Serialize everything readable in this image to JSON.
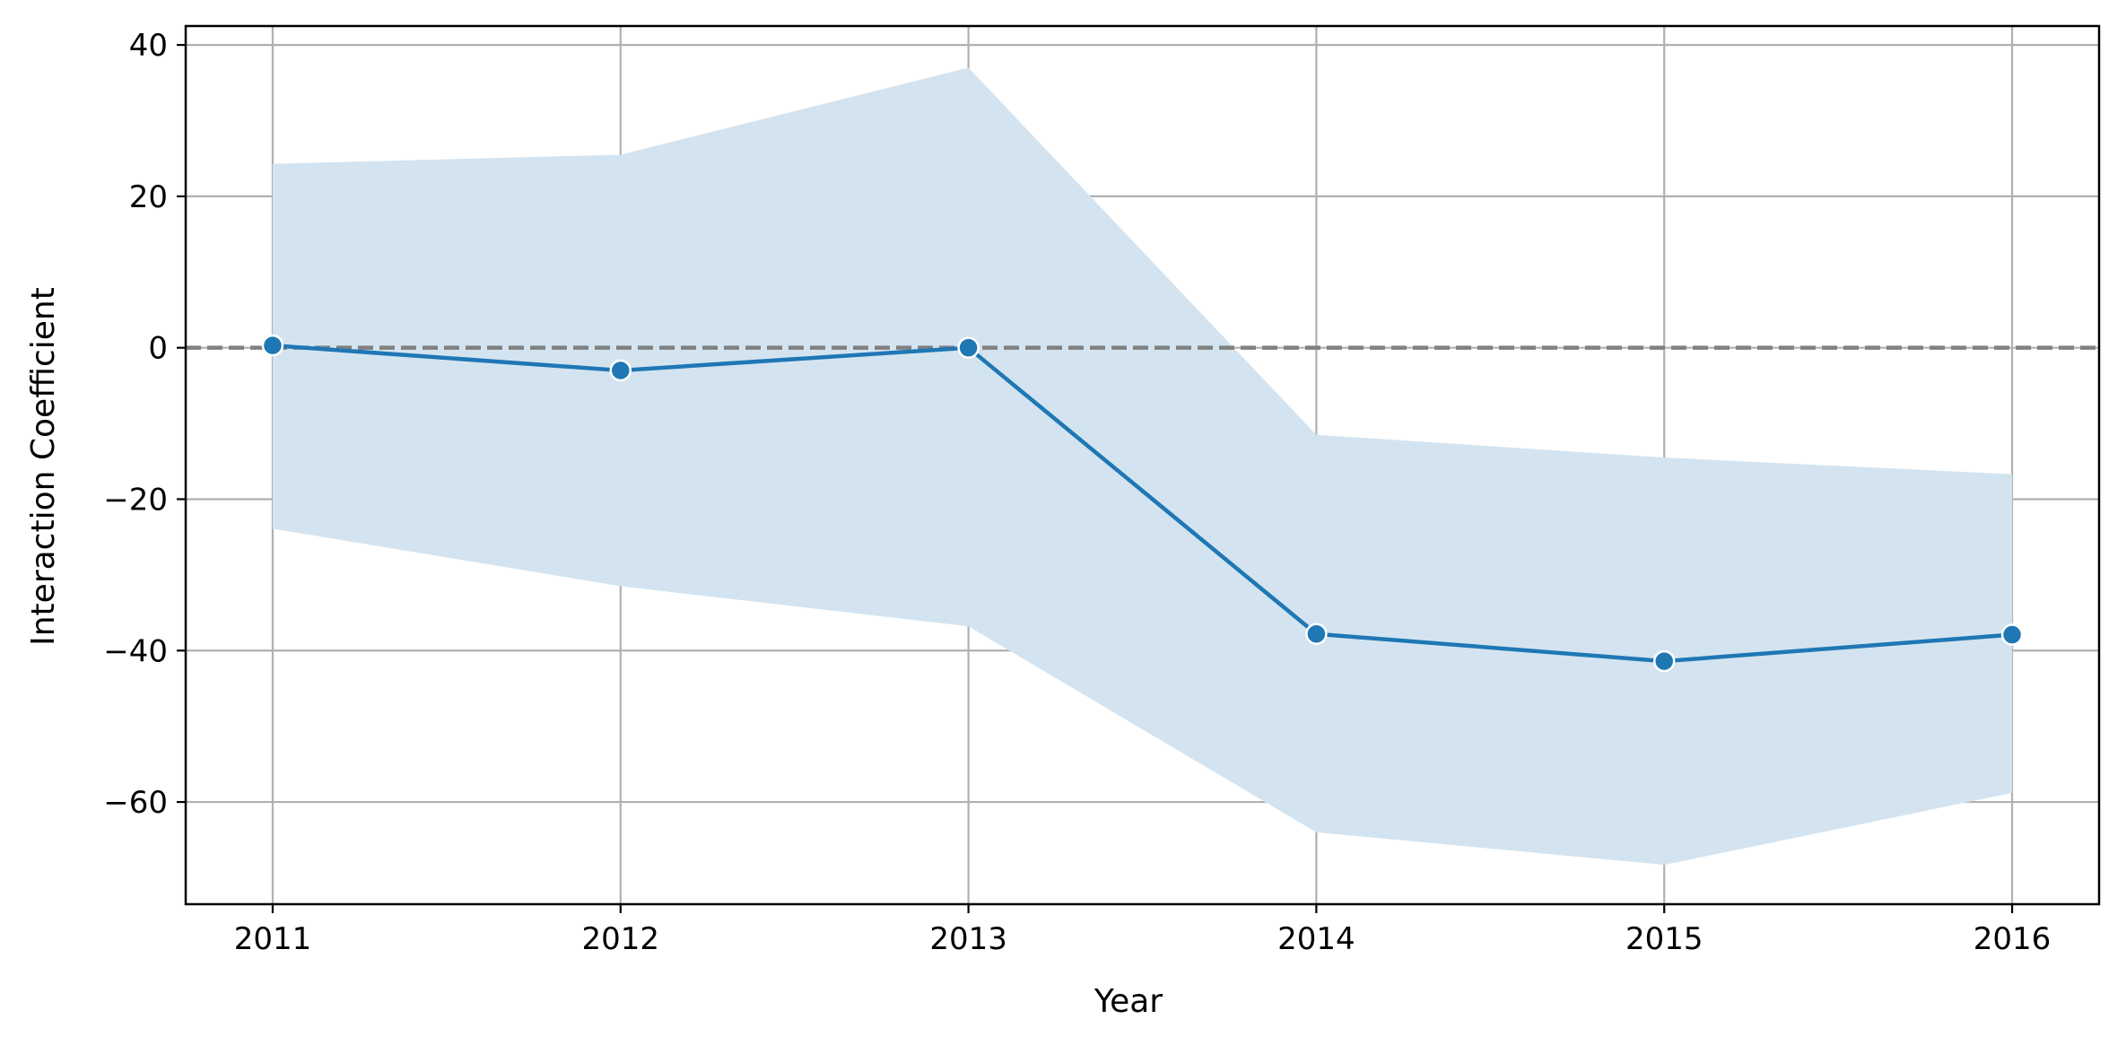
{
  "chart_data": {
    "type": "line",
    "title": "",
    "xlabel": "Year",
    "ylabel": "Interaction Coefficient",
    "x": [
      2011,
      2012,
      2013,
      2014,
      2015,
      2016
    ],
    "x_tick_labels": [
      "2011",
      "2012",
      "2013",
      "2014",
      "2015",
      "2016"
    ],
    "xlim": [
      2010.75,
      2016.25
    ],
    "y_ticks": [
      40,
      20,
      0,
      -20,
      -40,
      -60
    ],
    "y_tick_labels": [
      "40",
      "20",
      "0",
      "−20",
      "−40",
      "−60"
    ],
    "ylim": [
      -73.5,
      42.5
    ],
    "grid": true,
    "legend": "none",
    "series": [
      {
        "values": [
          0.3,
          -3.0,
          0.0,
          -37.8,
          -41.4,
          -37.9
        ],
        "ci_upper": [
          24.3,
          25.5,
          37.0,
          -11.5,
          -14.5,
          -16.7
        ],
        "ci_lower": [
          -23.9,
          -31.5,
          -36.8,
          -64.0,
          -68.3,
          -58.8
        ],
        "line_color": "#1f77b4",
        "band_color": "#d3e4f0",
        "marker": "circle"
      }
    ],
    "reference_line": {
      "y": 0,
      "style": "dashed",
      "color": "#808080"
    },
    "grid_color": "#b0b0b0"
  }
}
